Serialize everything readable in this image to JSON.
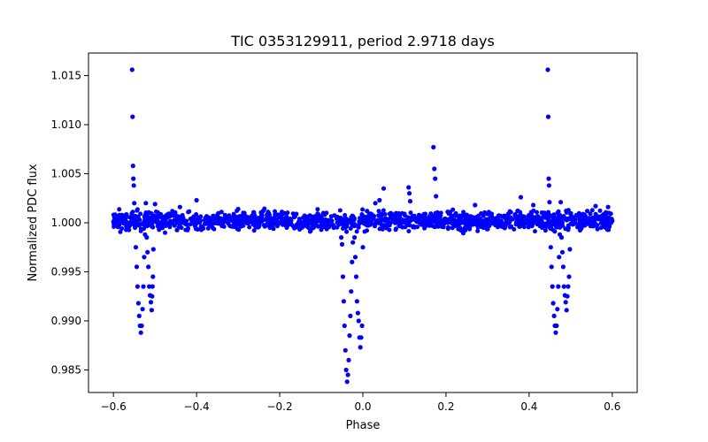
{
  "chart_data": {
    "type": "scatter",
    "title": "TIC 0353129911, period 2.9718 days",
    "xlabel": "Phase",
    "ylabel": "Normalized PDC flux",
    "xlim": [
      -0.66,
      0.66
    ],
    "ylim": [
      0.9827,
      1.0173
    ],
    "xticks": [
      -0.6,
      -0.4,
      -0.2,
      0.0,
      0.2,
      0.4,
      0.6
    ],
    "xtick_labels": [
      "−0.6",
      "−0.4",
      "−0.2",
      "0.0",
      "0.2",
      "0.4",
      "0.6"
    ],
    "yticks": [
      0.985,
      0.99,
      0.995,
      1.0,
      1.005,
      1.01,
      1.015
    ],
    "ytick_labels": [
      "0.985",
      "0.990",
      "0.995",
      "1.000",
      "1.005",
      "1.010",
      "1.015"
    ],
    "grid": false,
    "color": "#0000ff",
    "series": [
      {
        "points": [
          [
            -0.6,
            1.0001
          ],
          [
            -0.59,
            0.9996
          ],
          [
            -0.58,
            1.0004
          ],
          [
            -0.57,
            1.0008
          ],
          [
            -0.565,
            0.9998
          ],
          [
            -0.555,
            1.0156
          ],
          [
            -0.554,
            1.0108
          ],
          [
            -0.553,
            1.0058
          ],
          [
            -0.552,
            1.0045
          ],
          [
            -0.551,
            1.0038
          ],
          [
            -0.55,
            1.002
          ],
          [
            -0.548,
            0.9995
          ],
          [
            -0.546,
            0.9975
          ],
          [
            -0.544,
            0.9955
          ],
          [
            -0.542,
            0.9935
          ],
          [
            -0.54,
            0.9918
          ],
          [
            -0.538,
            0.9905
          ],
          [
            -0.536,
            0.9895
          ],
          [
            -0.534,
            0.9888
          ],
          [
            -0.532,
            0.9895
          ],
          [
            -0.53,
            0.9912
          ],
          [
            -0.528,
            0.9935
          ],
          [
            -0.526,
            0.9965
          ],
          [
            -0.524,
            0.9988
          ],
          [
            -0.522,
            1.0009
          ],
          [
            -0.522,
            1.002
          ],
          [
            -0.52,
            0.9985
          ],
          [
            -0.518,
            0.997
          ],
          [
            -0.516,
            0.9955
          ],
          [
            -0.514,
            0.9935
          ],
          [
            -0.512,
            0.9926
          ],
          [
            -0.51,
            0.9919
          ],
          [
            -0.508,
            0.9911
          ],
          [
            -0.507,
            0.9925
          ],
          [
            -0.506,
            0.9935
          ],
          [
            -0.505,
            0.9945
          ],
          [
            -0.504,
            0.9973
          ],
          [
            -0.5,
            1.0019
          ],
          [
            -0.49,
            0.9993
          ],
          [
            -0.48,
            1.0004
          ],
          [
            -0.46,
            1.0009
          ],
          [
            -0.44,
            1.0016
          ],
          [
            -0.42,
            1.0011
          ],
          [
            -0.4,
            1.0023
          ],
          [
            -0.38,
            0.9999
          ],
          [
            -0.36,
            1.0007
          ],
          [
            -0.34,
            1.0011
          ],
          [
            -0.32,
            0.9997
          ],
          [
            -0.3,
            1.0014
          ],
          [
            -0.28,
            1.0002
          ],
          [
            -0.26,
            1.0007
          ],
          [
            -0.24,
            1.0012
          ],
          [
            -0.22,
            0.9998
          ],
          [
            -0.2,
            1.0006
          ],
          [
            -0.18,
            1.0003
          ],
          [
            -0.16,
            1.0009
          ],
          [
            -0.14,
            0.9997
          ],
          [
            -0.12,
            1.0006
          ],
          [
            -0.1,
            1.0003
          ],
          [
            -0.09,
            1.0001
          ],
          [
            -0.07,
            0.9995
          ],
          [
            -0.06,
            1.0004
          ],
          [
            -0.055,
            1.0
          ],
          [
            -0.052,
            0.9985
          ],
          [
            -0.05,
            0.9978
          ],
          [
            -0.048,
            0.9945
          ],
          [
            -0.046,
            0.992
          ],
          [
            -0.044,
            0.9895
          ],
          [
            -0.042,
            0.987
          ],
          [
            -0.04,
            0.985
          ],
          [
            -0.038,
            0.9838
          ],
          [
            -0.036,
            0.9845
          ],
          [
            -0.034,
            0.986
          ],
          [
            -0.032,
            0.9885
          ],
          [
            -0.03,
            0.9905
          ],
          [
            -0.028,
            0.993
          ],
          [
            -0.026,
            0.996
          ],
          [
            -0.024,
            0.998
          ],
          [
            -0.022,
            1.0003
          ],
          [
            -0.02,
            0.9985
          ],
          [
            -0.018,
            0.9965
          ],
          [
            -0.016,
            0.9945
          ],
          [
            -0.014,
            0.992
          ],
          [
            -0.012,
            0.9908
          ],
          [
            -0.01,
            0.99
          ],
          [
            -0.008,
            0.9883
          ],
          [
            -0.006,
            0.9873
          ],
          [
            -0.004,
            0.9883
          ],
          [
            -0.002,
            0.9895
          ],
          [
            0.0,
            0.9975
          ],
          [
            0.01,
            1.0012
          ],
          [
            0.02,
            1.0009
          ],
          [
            0.03,
            1.002
          ],
          [
            0.04,
            1.0023
          ],
          [
            0.05,
            1.0035
          ],
          [
            0.06,
            1.0003
          ],
          [
            0.08,
            1.0006
          ],
          [
            0.1,
            1.0009
          ],
          [
            0.11,
            1.0036
          ],
          [
            0.112,
            1.003
          ],
          [
            0.114,
            1.0022
          ],
          [
            0.13,
            1.0003
          ],
          [
            0.15,
            1.0009
          ],
          [
            0.17,
            1.0077
          ],
          [
            0.172,
            1.0055
          ],
          [
            0.174,
            1.0045
          ],
          [
            0.176,
            1.0027
          ],
          [
            0.19,
            1.0002
          ],
          [
            0.21,
            1.0011
          ],
          [
            0.23,
            0.9997
          ],
          [
            0.25,
            1.0008
          ],
          [
            0.27,
            1.0018
          ],
          [
            0.29,
            1.0002
          ],
          [
            0.31,
            1.0009
          ],
          [
            0.33,
            0.9999
          ],
          [
            0.35,
            1.0009
          ],
          [
            0.37,
            1.0005
          ],
          [
            0.38,
            1.0026
          ],
          [
            0.39,
            1.0002
          ],
          [
            0.41,
            1.0018
          ],
          [
            0.43,
            0.9998
          ],
          [
            0.44,
            1.0006
          ],
          [
            0.445,
            1.0156
          ],
          [
            0.446,
            1.0108
          ],
          [
            0.447,
            1.0045
          ],
          [
            0.448,
            1.0038
          ],
          [
            0.449,
            1.0021
          ],
          [
            0.45,
            0.9995
          ],
          [
            0.452,
            0.9975
          ],
          [
            0.454,
            0.9955
          ],
          [
            0.456,
            0.9935
          ],
          [
            0.458,
            0.9918
          ],
          [
            0.46,
            0.9905
          ],
          [
            0.462,
            0.9895
          ],
          [
            0.464,
            0.9888
          ],
          [
            0.466,
            0.9895
          ],
          [
            0.468,
            0.9912
          ],
          [
            0.47,
            0.9935
          ],
          [
            0.472,
            0.9965
          ],
          [
            0.474,
            0.9988
          ],
          [
            0.476,
            1.0021
          ],
          [
            0.478,
            0.9985
          ],
          [
            0.48,
            0.997
          ],
          [
            0.482,
            0.9955
          ],
          [
            0.484,
            0.9935
          ],
          [
            0.486,
            0.9926
          ],
          [
            0.488,
            0.9919
          ],
          [
            0.49,
            0.9911
          ],
          [
            0.492,
            0.9925
          ],
          [
            0.494,
            0.9935
          ],
          [
            0.496,
            0.9945
          ],
          [
            0.498,
            0.9973
          ],
          [
            0.5,
            1.0009
          ],
          [
            0.52,
            0.9996
          ],
          [
            0.54,
            1.0012
          ],
          [
            0.56,
            1.0017
          ],
          [
            0.58,
            1.0006
          ],
          [
            0.59,
            1.0016
          ],
          [
            0.6,
            1.0002
          ]
        ]
      }
    ]
  }
}
